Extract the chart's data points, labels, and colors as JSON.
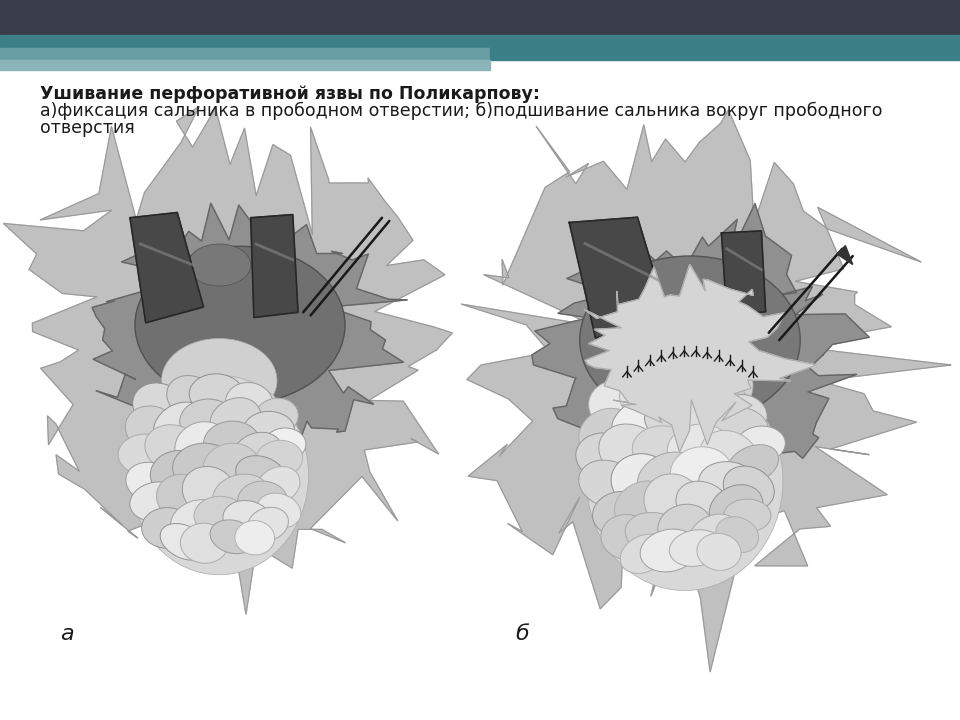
{
  "title_line1": "Ушивание перфоративной язвы по Поликарпову:",
  "title_line2": "а)фиксация сальника в прободном отверстии; б)подшивание сальника вокруг прободного",
  "title_line3": "отверстия",
  "label_a": "а",
  "label_b": "б",
  "bg_color": "#ffffff",
  "text_color": "#1a1a1a",
  "title_fontsize": 12.5,
  "label_fontsize": 14,
  "header_dark": "#3a3d4a",
  "header_teal1": "#3d7f87",
  "header_teal2": "#6a9ea5",
  "header_teal3": "#8ab4ba",
  "figsize": [
    9.6,
    7.2
  ],
  "dpi": 100
}
